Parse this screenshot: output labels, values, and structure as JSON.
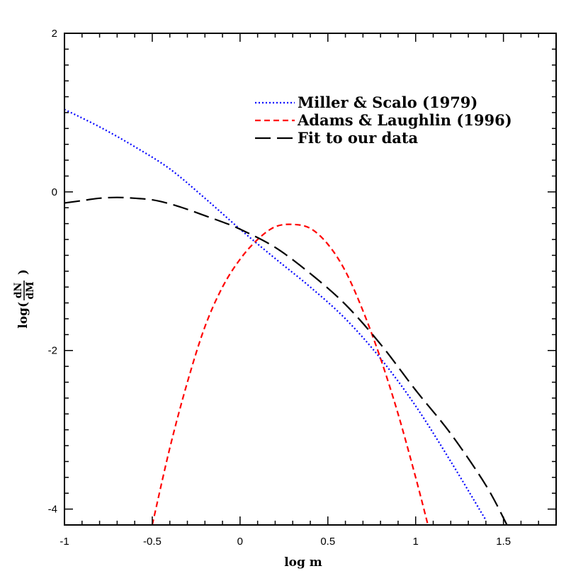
{
  "chart_data": {
    "type": "line",
    "xlabel": "log m",
    "ylabel_prefix": "log(",
    "ylabel_num": "dN",
    "ylabel_den": "dM",
    "ylabel_suffix": ")",
    "xlim": [
      -1,
      1.8
    ],
    "ylim": [
      -4.2,
      2
    ],
    "x_ticks": [
      -1,
      -0.5,
      0,
      0.5,
      1,
      1.5
    ],
    "x_tick_labels": [
      "-1",
      "-0.5",
      "0",
      "0.5",
      "1",
      "1.5"
    ],
    "y_ticks": [
      -4,
      -2,
      0,
      2
    ],
    "y_tick_labels": [
      "-4",
      "-2",
      "0",
      "2"
    ],
    "legend_position": "top-right",
    "series": [
      {
        "name": "Miller & Scalo (1979)",
        "color": "#0000ff",
        "style": "dotted",
        "x": [
          -1.0,
          -0.8,
          -0.6,
          -0.4,
          -0.2,
          0.0,
          0.2,
          0.4,
          0.6,
          0.8,
          1.0,
          1.2,
          1.4
        ],
        "y": [
          1.04,
          0.82,
          0.57,
          0.29,
          -0.08,
          -0.47,
          -0.84,
          -1.2,
          -1.6,
          -2.1,
          -2.7,
          -3.4,
          -4.14
        ]
      },
      {
        "name": "Adams & Laughlin (1996)",
        "color": "#ff0000",
        "style": "dashed",
        "x": [
          -0.5,
          -0.4,
          -0.3,
          -0.2,
          -0.1,
          0.0,
          0.1,
          0.2,
          0.3,
          0.4,
          0.5,
          0.6,
          0.7,
          0.8,
          0.9,
          1.0,
          1.07
        ],
        "y": [
          -4.2,
          -3.23,
          -2.4,
          -1.7,
          -1.2,
          -0.85,
          -0.6,
          -0.44,
          -0.41,
          -0.46,
          -0.66,
          -1.0,
          -1.5,
          -2.1,
          -2.8,
          -3.6,
          -4.2
        ]
      },
      {
        "name": "Fit to our data",
        "color": "#000000",
        "style": "longdash",
        "x": [
          -1.0,
          -0.9,
          -0.8,
          -0.7,
          -0.6,
          -0.5,
          -0.4,
          -0.3,
          -0.2,
          -0.1,
          0.0,
          0.2,
          0.4,
          0.6,
          0.8,
          1.0,
          1.2,
          1.4,
          1.52
        ],
        "y": [
          -0.14,
          -0.11,
          -0.08,
          -0.07,
          -0.08,
          -0.1,
          -0.15,
          -0.22,
          -0.3,
          -0.38,
          -0.47,
          -0.7,
          -1.03,
          -1.42,
          -1.92,
          -2.5,
          -3.05,
          -3.7,
          -4.2
        ]
      }
    ]
  }
}
